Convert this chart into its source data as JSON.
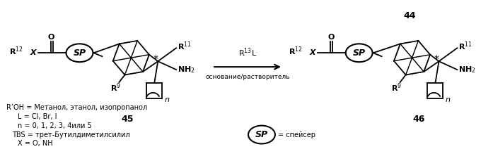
{
  "figsize": [
    6.97,
    2.29
  ],
  "dpi": 100,
  "bg_color": "#ffffff",
  "annotation_44": "44",
  "annotation_45": "45",
  "annotation_46": "46",
  "arrow_label_top": "R$^{13}$L",
  "arrow_label_bottom": "основание/растворитель",
  "bottom_text_line1": "R’OH = Метанол, этанол, изопропанол",
  "bottom_text_line2": "L = Cl, Br, I",
  "bottom_text_line3": "n = 0, 1, 2, 3, 4или 5",
  "bottom_text_line4": "TBS = трет-Бутилдиметилсилил",
  "bottom_text_line5": "X = O, NH",
  "sp_label": "SP",
  "sp_eq_text": "= спейсер",
  "font_size_main": 8,
  "font_size_small": 7,
  "font_size_label": 9,
  "text_color": "#000000",
  "line_color": "#000000"
}
